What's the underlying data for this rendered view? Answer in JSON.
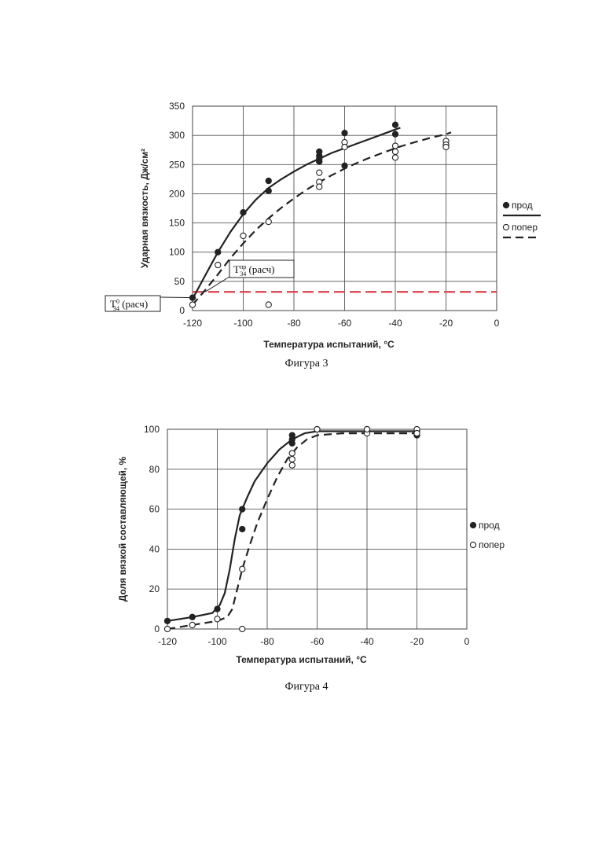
{
  "chart_data": [
    {
      "type": "scatter",
      "caption": "Фигура 3",
      "ylabel": "Ударная вязкость, Дж/см²",
      "xlabel": "Температура испытаний, °С",
      "xlim": [
        -120,
        0
      ],
      "ylim": [
        0,
        350
      ],
      "xticks": [
        "-120",
        "-100",
        "-80",
        "-60",
        "-40",
        "-20",
        "0"
      ],
      "yticks": [
        "0",
        "50",
        "100",
        "150",
        "200",
        "250",
        "300",
        "350"
      ],
      "grid": true,
      "legend_position": "right",
      "series": [
        {
          "name": "прод",
          "marker": "filled",
          "line": "solid",
          "points": [
            [
              -120,
              22
            ],
            [
              -110,
              100
            ],
            [
              -100,
              168
            ],
            [
              -90,
              222
            ],
            [
              -90,
              205
            ],
            [
              -70,
              272
            ],
            [
              -70,
              265
            ],
            [
              -70,
              260
            ],
            [
              -70,
              255
            ],
            [
              -60,
              304
            ],
            [
              -60,
              248
            ],
            [
              -40,
              318
            ],
            [
              -40,
              302
            ]
          ],
          "trend": [
            [
              -120,
              20
            ],
            [
              -115,
              60
            ],
            [
              -110,
              100
            ],
            [
              -105,
              135
            ],
            [
              -100,
              165
            ],
            [
              -95,
              190
            ],
            [
              -90,
              210
            ],
            [
              -85,
              225
            ],
            [
              -80,
              238
            ],
            [
              -75,
              250
            ],
            [
              -70,
              260
            ],
            [
              -65,
              270
            ],
            [
              -60,
              278
            ],
            [
              -55,
              286
            ],
            [
              -50,
              294
            ],
            [
              -45,
              302
            ],
            [
              -40,
              310
            ],
            [
              -38,
              313
            ]
          ]
        },
        {
          "name": "попер",
          "marker": "open",
          "line": "dashed",
          "points": [
            [
              -120,
              10
            ],
            [
              -110,
              78
            ],
            [
              -100,
              128
            ],
            [
              -90,
              152
            ],
            [
              -90,
              10
            ],
            [
              -70,
              236
            ],
            [
              -70,
              220
            ],
            [
              -70,
              212
            ],
            [
              -60,
              288
            ],
            [
              -60,
              280
            ],
            [
              -40,
              282
            ],
            [
              -40,
              272
            ],
            [
              -40,
              262
            ],
            [
              -20,
              290
            ],
            [
              -20,
              284
            ],
            [
              -20,
              280
            ]
          ],
          "trend": [
            [
              -120,
              10
            ],
            [
              -115,
              35
            ],
            [
              -110,
              62
            ],
            [
              -105,
              90
            ],
            [
              -100,
              115
            ],
            [
              -95,
              138
            ],
            [
              -90,
              158
            ],
            [
              -85,
              176
            ],
            [
              -80,
              192
            ],
            [
              -75,
              207
            ],
            [
              -70,
              220
            ],
            [
              -65,
              232
            ],
            [
              -60,
              243
            ],
            [
              -55,
              253
            ],
            [
              -50,
              262
            ],
            [
              -45,
              270
            ],
            [
              -40,
              278
            ],
            [
              -35,
              285
            ],
            [
              -30,
              291
            ],
            [
              -25,
              297
            ],
            [
              -20,
              302
            ],
            [
              -18,
              305
            ]
          ]
        }
      ],
      "reference_line": {
        "y": 32,
        "color": "#d9434c",
        "style": "dashed"
      },
      "annotations": [
        {
          "id": "t0",
          "base": "Т",
          "sup": "0",
          "sub": "34",
          "suffix": " (расч)"
        },
        {
          "id": "tpr",
          "base": "Т",
          "sup": "пр",
          "sub": "34",
          "suffix": " (расч)"
        }
      ]
    },
    {
      "type": "scatter",
      "caption": "Фигура 4",
      "ylabel": "Доля вязкой составляющей, %",
      "xlabel": "Температура испытаний, °С",
      "xlim": [
        -120,
        0
      ],
      "ylim": [
        0,
        100
      ],
      "xticks": [
        "-120",
        "-100",
        "-80",
        "-60",
        "-40",
        "-20",
        "0"
      ],
      "yticks": [
        "0",
        "20",
        "40",
        "60",
        "80",
        "100"
      ],
      "grid": true,
      "legend_position": "right",
      "series": [
        {
          "name": "прод",
          "marker": "filled",
          "line": "solid",
          "points": [
            [
              -120,
              4
            ],
            [
              -110,
              6
            ],
            [
              -100,
              10
            ],
            [
              -90,
              60
            ],
            [
              -90,
              50
            ],
            [
              -70,
              97
            ],
            [
              -70,
              95
            ],
            [
              -70,
              93
            ],
            [
              -60,
              100
            ],
            [
              -40,
              100
            ],
            [
              -40,
              99
            ],
            [
              -20,
              99
            ],
            [
              -20,
              97
            ]
          ],
          "trend": [
            [
              -120,
              4
            ],
            [
              -110,
              6
            ],
            [
              -102,
              8
            ],
            [
              -99,
              12
            ],
            [
              -97,
              18
            ],
            [
              -95,
              30
            ],
            [
              -93,
              45
            ],
            [
              -91,
              57
            ],
            [
              -88,
              66
            ],
            [
              -85,
              74
            ],
            [
              -80,
              83
            ],
            [
              -75,
              90
            ],
            [
              -70,
              95
            ],
            [
              -65,
              98
            ],
            [
              -60,
              99
            ],
            [
              -50,
              99
            ],
            [
              -40,
              99
            ],
            [
              -20,
              99
            ]
          ]
        },
        {
          "name": "попер",
          "marker": "open",
          "line": "dashed",
          "points": [
            [
              -120,
              0
            ],
            [
              -110,
              2
            ],
            [
              -100,
              5
            ],
            [
              -90,
              30
            ],
            [
              -90,
              0
            ],
            [
              -70,
              88
            ],
            [
              -70,
              85
            ],
            [
              -70,
              82
            ],
            [
              -60,
              100
            ],
            [
              -40,
              98
            ],
            [
              -40,
              100
            ],
            [
              -20,
              100
            ],
            [
              -20,
              98
            ]
          ],
          "trend": [
            [
              -120,
              0
            ],
            [
              -110,
              2
            ],
            [
              -100,
              4
            ],
            [
              -96,
              6
            ],
            [
              -94,
              10
            ],
            [
              -92,
              20
            ],
            [
              -90,
              30
            ],
            [
              -87,
              42
            ],
            [
              -84,
              53
            ],
            [
              -80,
              65
            ],
            [
              -76,
              76
            ],
            [
              -72,
              85
            ],
            [
              -68,
              91
            ],
            [
              -64,
              95
            ],
            [
              -60,
              97
            ],
            [
              -50,
              98
            ],
            [
              -40,
              98
            ],
            [
              -20,
              98
            ]
          ]
        }
      ],
      "reference_line": null,
      "annotations": []
    }
  ]
}
